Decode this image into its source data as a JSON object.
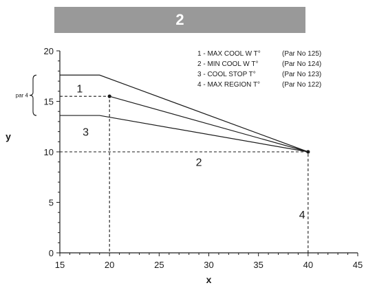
{
  "banner": {
    "label": "2"
  },
  "chart_data": {
    "type": "line",
    "xlabel": "x",
    "ylabel": "y",
    "xlim": [
      15,
      45
    ],
    "ylim": [
      0,
      20
    ],
    "xticks": [
      15,
      20,
      25,
      30,
      35,
      40,
      45
    ],
    "yticks": [
      0,
      5,
      10,
      15,
      20
    ],
    "series": [
      {
        "values": [
          [
            15,
            17.6
          ],
          [
            19,
            17.6
          ],
          [
            40,
            10
          ]
        ]
      },
      {
        "values": [
          [
            20,
            15.5
          ],
          [
            40,
            10
          ]
        ]
      },
      {
        "values": [
          [
            15,
            13.6
          ],
          [
            19,
            13.6
          ],
          [
            40,
            10
          ]
        ]
      }
    ],
    "points": [
      [
        20,
        15.5
      ],
      [
        40,
        10
      ]
    ],
    "dashed_refs": [
      {
        "points": [
          [
            15,
            15.5
          ],
          [
            20,
            15.5
          ],
          [
            20,
            0
          ]
        ]
      },
      {
        "points": [
          [
            15,
            10
          ],
          [
            40,
            10
          ],
          [
            40,
            0
          ]
        ]
      }
    ],
    "region_labels": [
      {
        "text": "1",
        "x": 17,
        "y": 16.3
      },
      {
        "text": "3",
        "x": 17.6,
        "y": 12
      },
      {
        "text": "2",
        "x": 29,
        "y": 9
      },
      {
        "text": "4",
        "x": 39.4,
        "y": 3.8
      }
    ],
    "brace": {
      "label": "par 4",
      "y_top": 17.6,
      "y_bottom": 13.6
    },
    "legend_position": "top-right",
    "legend": [
      {
        "name": "1 - MAX COOL W T°",
        "param": "(Par No 125)"
      },
      {
        "name": "2 - MIN COOL W T°",
        "param": "(Par No 124)"
      },
      {
        "name": "3 - COOL STOP T°",
        "param": "(Par No 123)"
      },
      {
        "name": "4 - MAX REGION T°",
        "param": "(Par No 122)"
      }
    ]
  }
}
